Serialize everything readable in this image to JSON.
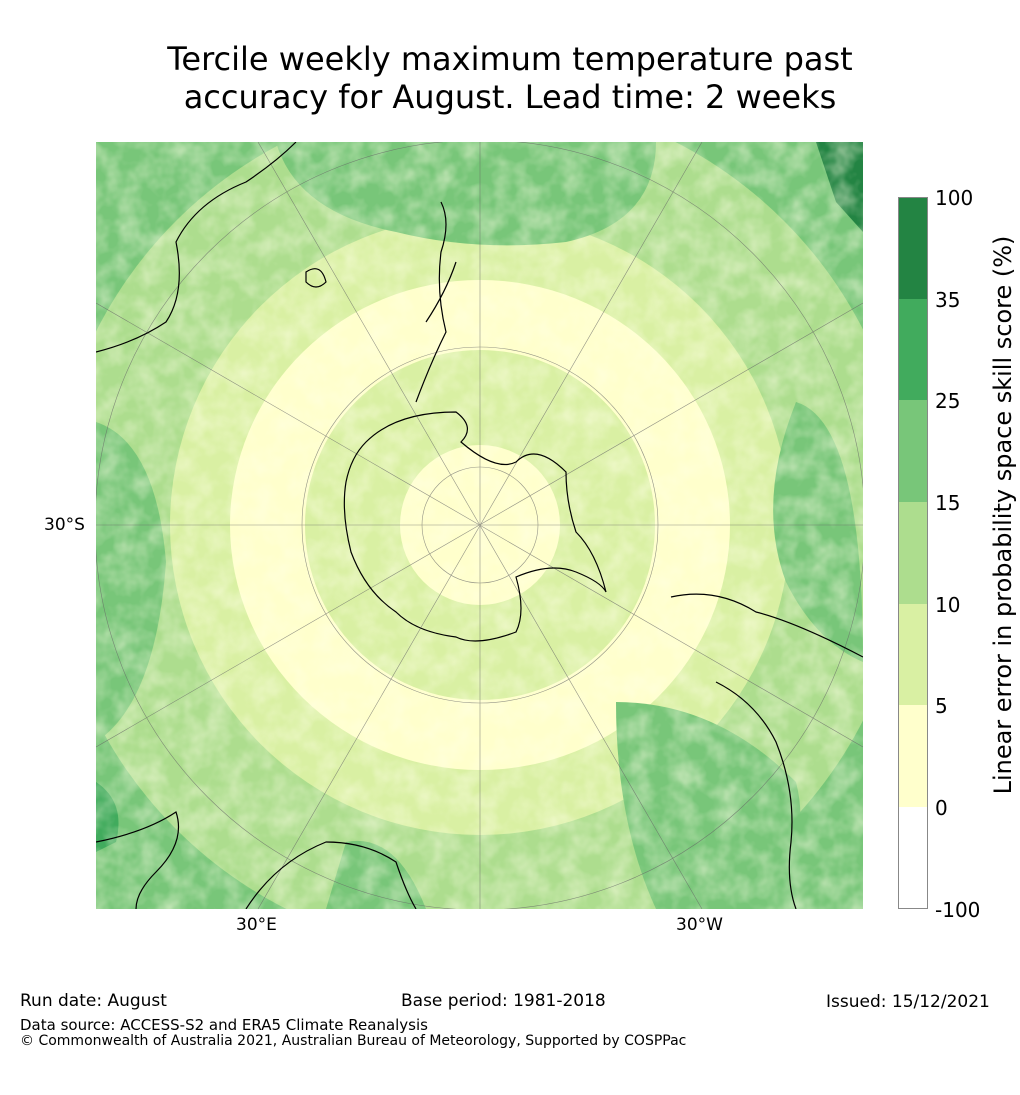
{
  "title_line1": "Tercile weekly maximum temperature past",
  "title_line2": "accuracy for August. Lead time: 2 weeks",
  "map": {
    "lat_label": "30°S",
    "lon_label_left": "30°E",
    "lon_label_right": "30°W",
    "colors": {
      "land_outline": "#000000",
      "class_0_5": "#ffffcc",
      "class_5_10": "#d9f0a3",
      "class_10_15": "#addd8e",
      "class_15_25": "#78c679",
      "class_25_35": "#41ab5d",
      "class_35_100": "#238443",
      "grid": "#666666"
    }
  },
  "colorbar": {
    "title": "Linear error in probability space skill score (%)",
    "ticks": [
      "100",
      "35",
      "25",
      "15",
      "10",
      "5",
      "0",
      "-100"
    ],
    "bands": [
      {
        "label": "35-100",
        "color": "#238443"
      },
      {
        "label": "25-35",
        "color": "#41ab5d"
      },
      {
        "label": "15-25",
        "color": "#78c679"
      },
      {
        "label": "10-15",
        "color": "#addd8e"
      },
      {
        "label": "5-10",
        "color": "#d9f0a3"
      },
      {
        "label": "0-5",
        "color": "#ffffcc"
      },
      {
        "label": "-100-0",
        "color": "#ffffff"
      }
    ]
  },
  "footer": {
    "run_date": "Run date: August",
    "base_period": "Base period: 1981-2018",
    "issued": "Issued: 15/12/2021",
    "data_source": "Data source: ACCESS-S2 and ERA5 Climate Reanalysis",
    "copyright": "© Commonwealth of Australia 2021, Australian Bureau of Meteorology, Supported by COSPPac"
  }
}
